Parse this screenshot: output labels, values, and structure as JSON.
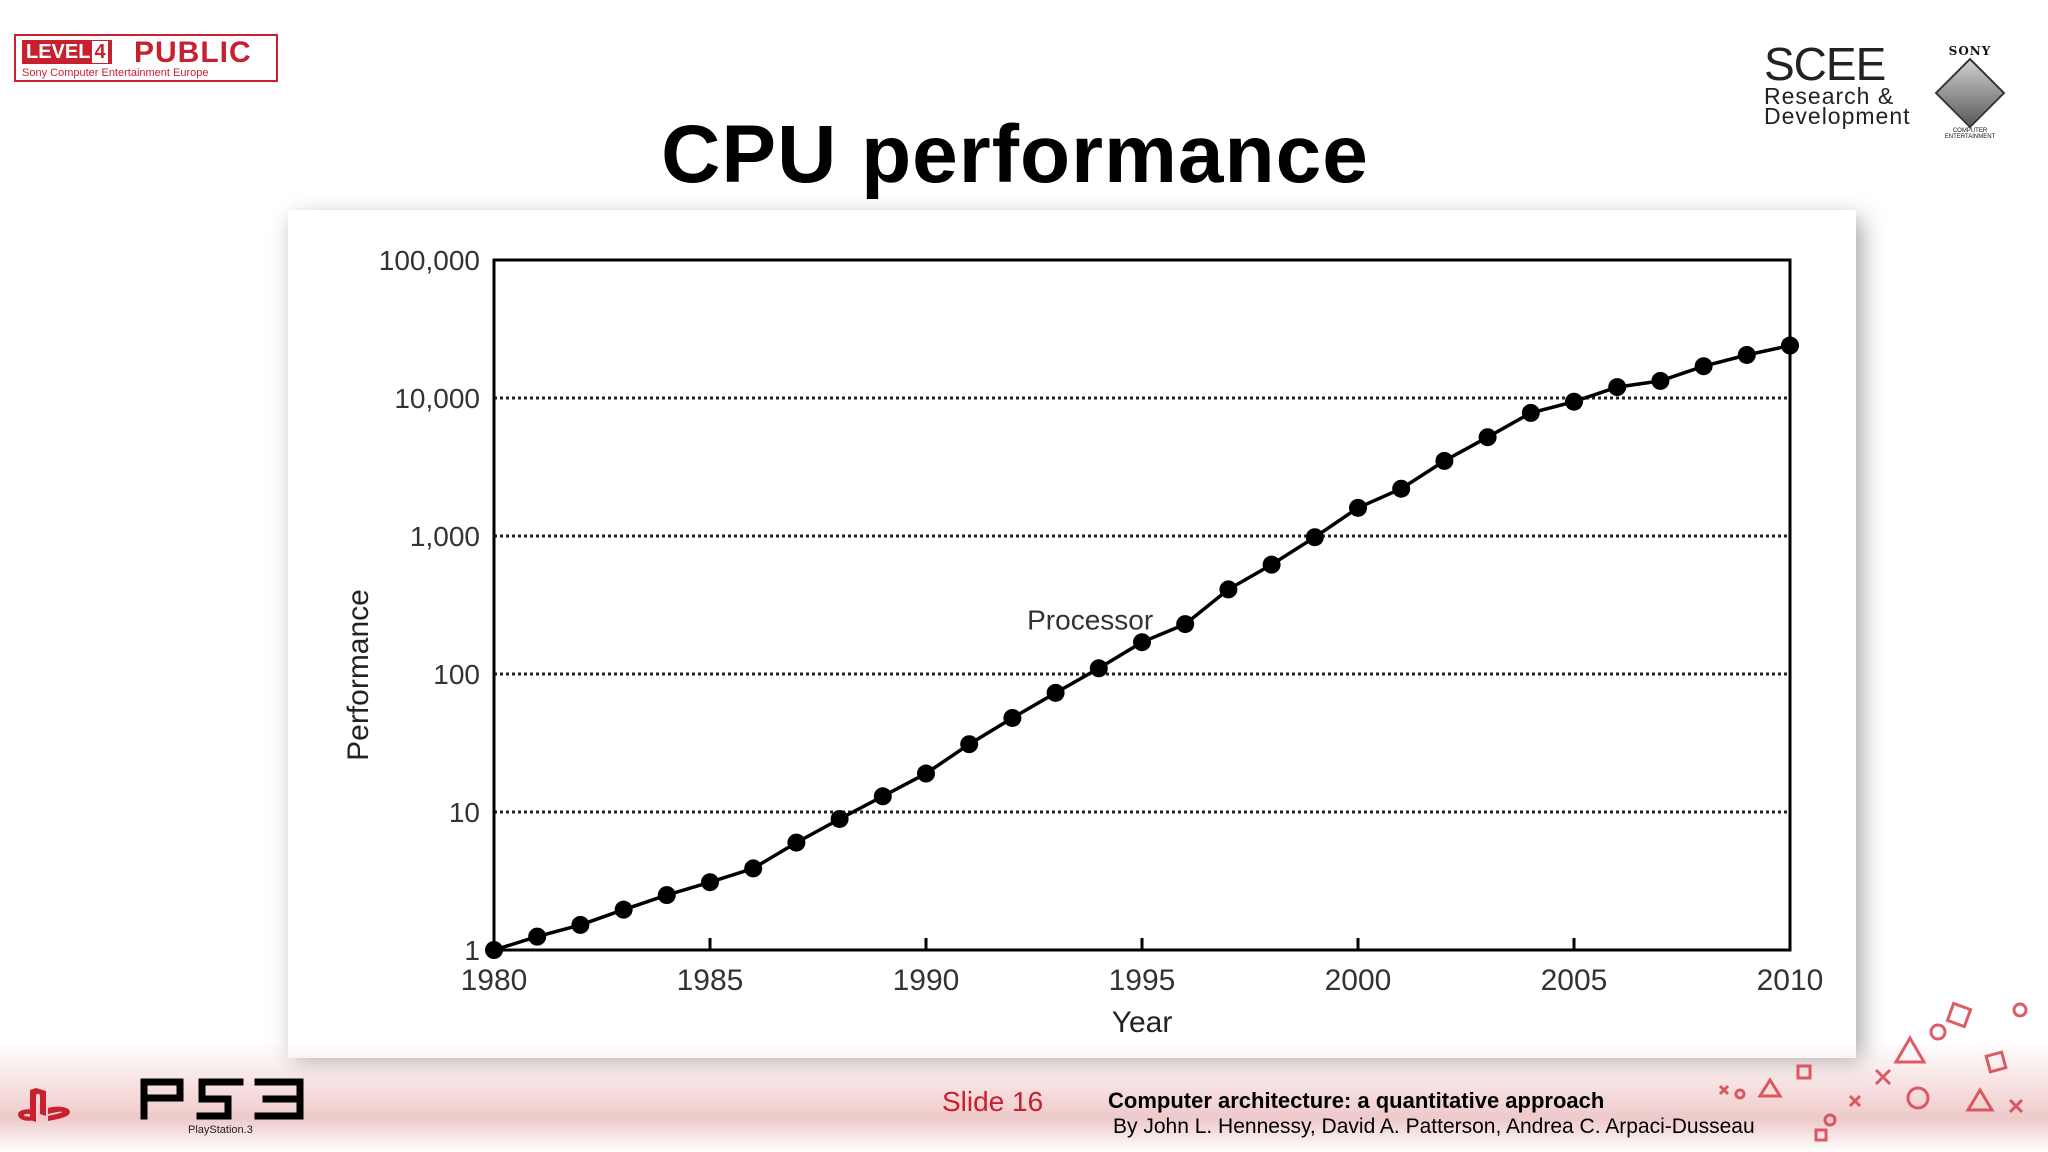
{
  "badge": {
    "level": "LEVEL",
    "level_num": "4",
    "public": "PUBLIC",
    "subtitle": "Sony Computer Entertainment Europe"
  },
  "title": "CPU performance",
  "scee": {
    "name": "SCEE",
    "line1": "Research &",
    "line2": "Development"
  },
  "sony": {
    "name": "SONY",
    "sub": "COMPUTER ENTERTAINMENT"
  },
  "chart_data": {
    "type": "line",
    "title": "",
    "xlabel": "Year",
    "ylabel": "Performance",
    "xlim": [
      1980,
      2010
    ],
    "ylim": [
      1,
      100000
    ],
    "yscale": "log",
    "grid": "horizontal dotted",
    "x_ticks": [
      1980,
      1985,
      1990,
      1995,
      2000,
      2005,
      2010
    ],
    "x_tick_labels": [
      "1980",
      "1985",
      "1990",
      "1995",
      "2000",
      "2005",
      "2010"
    ],
    "y_ticks": [
      1,
      10,
      100,
      1000,
      10000,
      100000
    ],
    "y_tick_labels": [
      "1",
      "10",
      "100",
      "1,000",
      "10,000",
      "100,000"
    ],
    "annotation": {
      "text": "Processor",
      "x": 1993.8,
      "y": 210
    },
    "series": [
      {
        "name": "Processor",
        "color": "#000000",
        "x": [
          1980,
          1981,
          1982,
          1983,
          1984,
          1985,
          1986,
          1987,
          1988,
          1989,
          1990,
          1991,
          1992,
          1993,
          1994,
          1995,
          1996,
          1997,
          1998,
          1999,
          2000,
          2001,
          2002,
          2003,
          2004,
          2005,
          2006,
          2007,
          2008,
          2009,
          2010
        ],
        "y": [
          1,
          1.25,
          1.52,
          1.96,
          2.5,
          3.1,
          3.9,
          6,
          8.9,
          13,
          19,
          31,
          48,
          73,
          110,
          170,
          230,
          410,
          620,
          980,
          1600,
          2200,
          3500,
          5200,
          7800,
          9400,
          12000,
          13300,
          17000,
          20500,
          24000
        ]
      }
    ]
  },
  "footer": {
    "ps3_sub": "PlayStation.3",
    "slide": "Slide 16",
    "ref_title": "Computer architecture: a quantitative approach",
    "ref_authors": "By John L. Hennessy, David A. Patterson, Andrea C. Arpaci-Dusseau"
  },
  "colors": {
    "accent": "#c8202f",
    "text": "#000000"
  }
}
